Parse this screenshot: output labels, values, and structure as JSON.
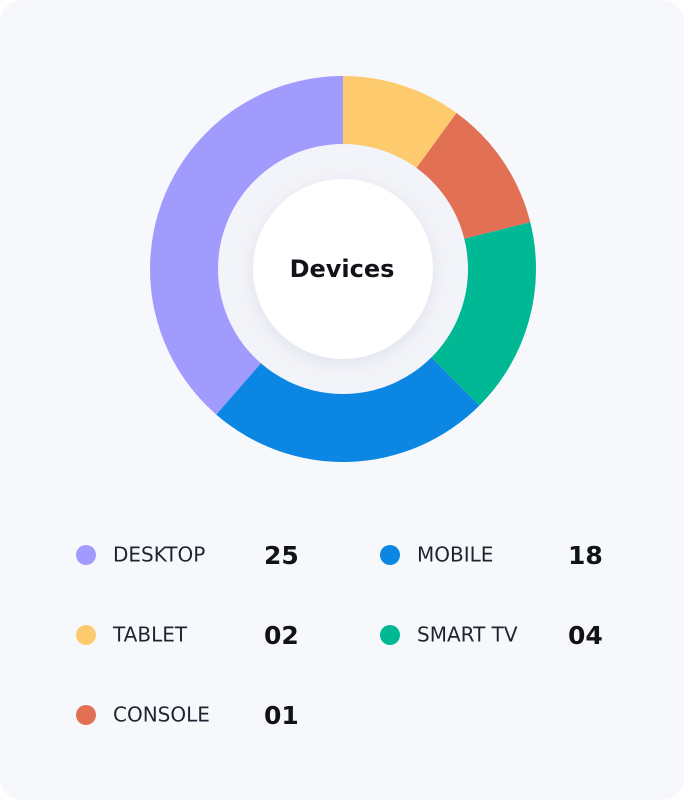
{
  "chart_data": {
    "type": "donut",
    "title": "Devices",
    "categories": [
      "DESKTOP",
      "MOBILE",
      "SMART TV",
      "CONSOLE",
      "TABLET"
    ],
    "values": [
      38.6,
      23.9,
      16.4,
      11.1,
      10.0
    ],
    "colors": [
      "#a29bfe",
      "#0b86e3",
      "#00b894",
      "#e17055",
      "#fdcb6e"
    ],
    "counts": [
      {
        "value": 25,
        "label": "25"
      },
      {
        "value": 18,
        "label": "18"
      },
      {
        "value": 4,
        "label": "04"
      },
      {
        "value": 1,
        "label": "01"
      },
      {
        "value": 2,
        "label": "02"
      }
    ]
  }
}
